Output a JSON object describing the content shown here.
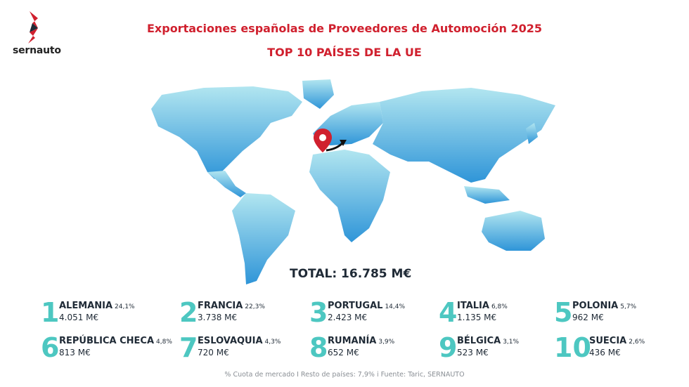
{
  "brand": {
    "name": "sernauto",
    "accent": "#d0202e"
  },
  "header": {
    "title": "Exportaciones españolas de Proveedores de Automoción 2025",
    "subtitle": "TOP 10 PAÍSES DE LA UE"
  },
  "map": {
    "icon": "location-pin-icon",
    "arrow_icon": "export-arrow-icon",
    "colors": {
      "land_top": "#a9e2ee",
      "land_bottom": "#2f95d8",
      "pin": "#d0202e"
    }
  },
  "total": {
    "label": "TOTAL: 16.785 M€"
  },
  "ranking": [
    {
      "rank": "1",
      "country": "ALEMANIA",
      "share": "24,1%",
      "value": "4.051 M€"
    },
    {
      "rank": "2",
      "country": "FRANCIA",
      "share": "22,3%",
      "value": "3.738 M€"
    },
    {
      "rank": "3",
      "country": "PORTUGAL",
      "share": "14,4%",
      "value": "2.423 M€"
    },
    {
      "rank": "4",
      "country": "ITALIA",
      "share": "6,8%",
      "value": "1.135 M€"
    },
    {
      "rank": "5",
      "country": "POLONIA",
      "share": "5,7%",
      "value": "962 M€"
    },
    {
      "rank": "6",
      "country": "REPÚBLICA CHECA",
      "share": "4,8%",
      "value": "813 M€"
    },
    {
      "rank": "7",
      "country": "ESLOVAQUIA",
      "share": "4,3%",
      "value": "720 M€"
    },
    {
      "rank": "8",
      "country": "RUMANÍA",
      "share": "3,9%",
      "value": "652 M€"
    },
    {
      "rank": "9",
      "country": "BÉLGICA",
      "share": "3,1%",
      "value": "523 M€"
    },
    {
      "rank": "10",
      "country": "SUECIA",
      "share": "2,6%",
      "value": "436 M€"
    }
  ],
  "footer": {
    "note": "% Cuota de mercado I Resto de países: 7,9% i  Fuente: Taric, SERNAUTO"
  }
}
